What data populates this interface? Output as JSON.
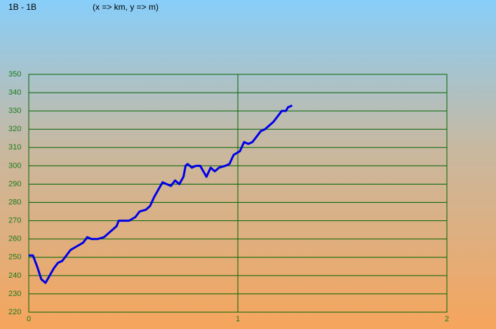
{
  "chart_data": {
    "type": "line",
    "title": "1B - 1B",
    "subtitle": "(x => km, y => m)",
    "x": [
      0,
      0.02,
      0.04,
      0.06,
      0.08,
      0.1,
      0.12,
      0.14,
      0.16,
      0.18,
      0.2,
      0.23,
      0.26,
      0.28,
      0.3,
      0.33,
      0.36,
      0.39,
      0.42,
      0.43,
      0.45,
      0.48,
      0.51,
      0.53,
      0.56,
      0.58,
      0.6,
      0.62,
      0.64,
      0.68,
      0.7,
      0.72,
      0.74,
      0.75,
      0.76,
      0.78,
      0.8,
      0.82,
      0.85,
      0.87,
      0.89,
      0.91,
      0.94,
      0.96,
      0.98,
      1.01,
      1.03,
      1.05,
      1.07,
      1.09,
      1.11,
      1.13,
      1.15,
      1.17,
      1.19,
      1.21,
      1.23,
      1.24,
      1.26
    ],
    "series": [
      {
        "color": "#0000e6",
        "values": [
          251,
          251,
          245,
          238,
          236,
          240,
          244,
          247,
          248,
          251,
          254,
          256,
          258,
          261,
          260,
          260,
          261,
          264,
          267,
          270,
          270,
          270,
          272,
          275,
          276,
          278,
          283,
          287,
          291,
          289,
          292,
          290,
          294,
          300,
          301,
          299,
          300,
          300,
          294,
          299,
          297,
          299,
          300,
          301,
          306,
          308,
          313,
          312,
          313,
          316,
          319,
          320,
          322,
          324,
          327,
          330,
          330,
          332,
          333
        ]
      }
    ],
    "xlim": [
      0,
      2
    ],
    "xticks": [
      0,
      1,
      2
    ],
    "ylim": [
      220,
      350
    ],
    "yticks": [
      220,
      230,
      240,
      250,
      260,
      270,
      280,
      290,
      300,
      310,
      320,
      330,
      340,
      350
    ],
    "grid": true,
    "grid_color": "#006400"
  }
}
